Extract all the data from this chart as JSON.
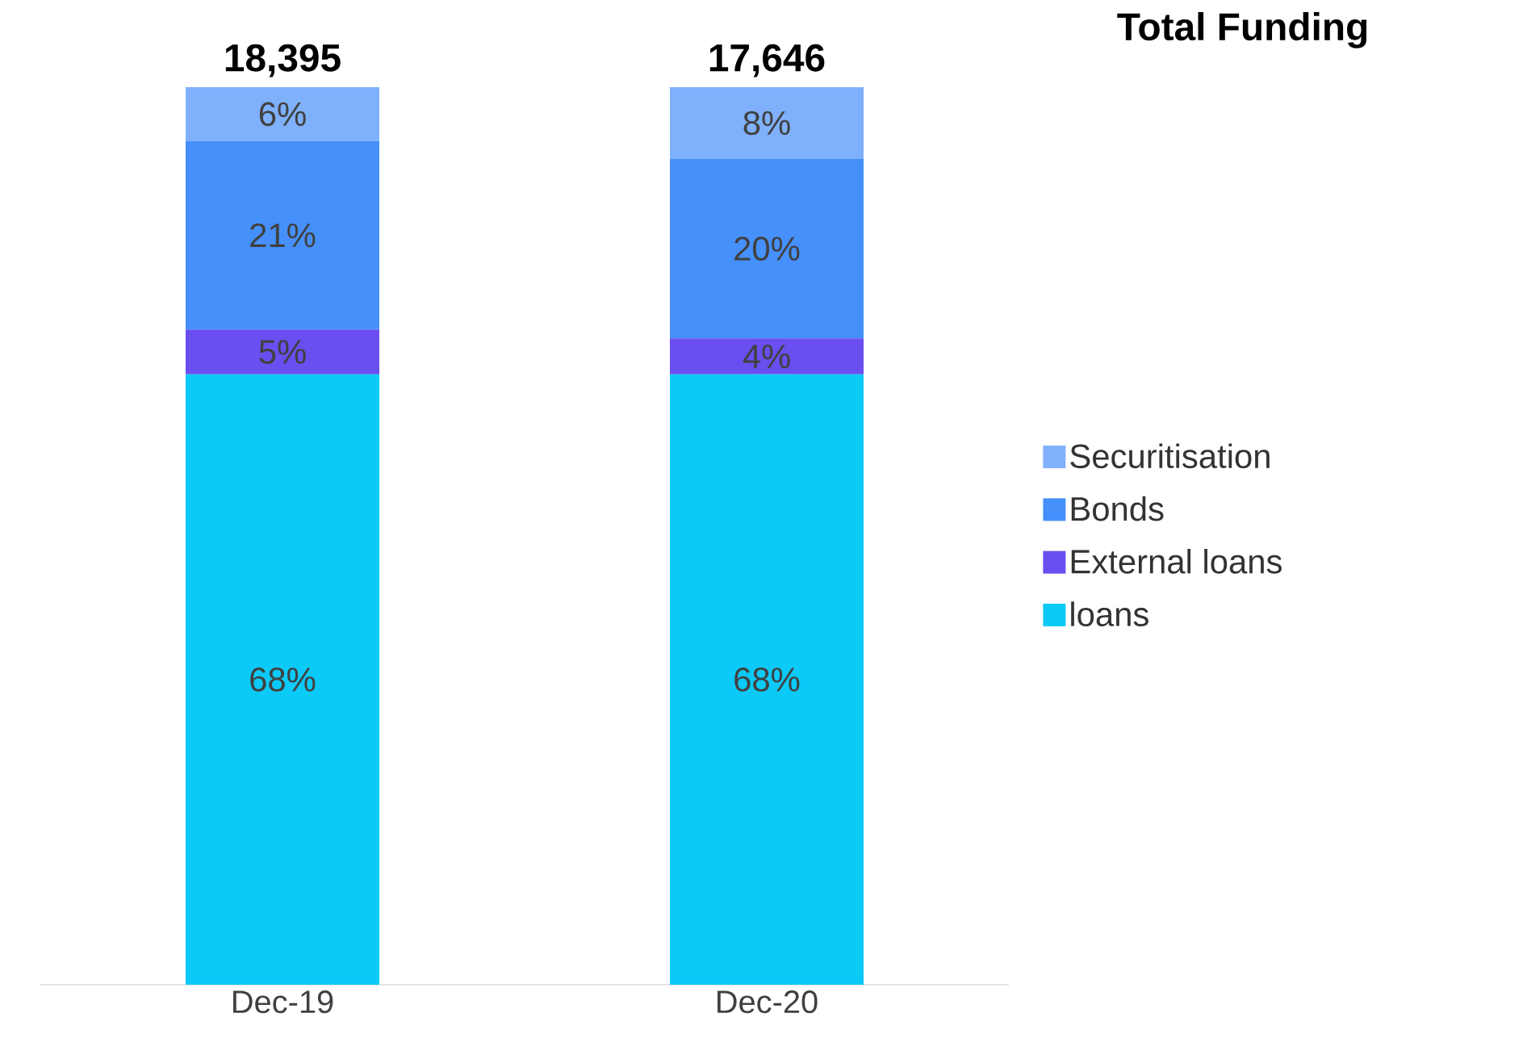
{
  "chart_data": {
    "type": "bar",
    "stacked": true,
    "title": "Total Funding",
    "categories": [
      "Dec-19",
      "Dec-20"
    ],
    "series": [
      {
        "name": "loans",
        "color": "#0ccaf7",
        "values": [
          68,
          68
        ],
        "value_labels": [
          "68%",
          "68%"
        ]
      },
      {
        "name": "External loans",
        "color": "#6a4ef0",
        "values": [
          5,
          4
        ],
        "value_labels": [
          "5%",
          "4%"
        ]
      },
      {
        "name": "Bonds",
        "color": "#4690fb",
        "values": [
          21,
          20
        ],
        "value_labels": [
          "21%",
          "20%"
        ]
      },
      {
        "name": "Securitisation",
        "color": "#7fb0fb",
        "values": [
          6,
          8
        ],
        "value_labels": [
          "6%",
          "8%"
        ]
      }
    ],
    "annotations": [
      "18,395",
      "17,646"
    ],
    "legend": "right"
  }
}
